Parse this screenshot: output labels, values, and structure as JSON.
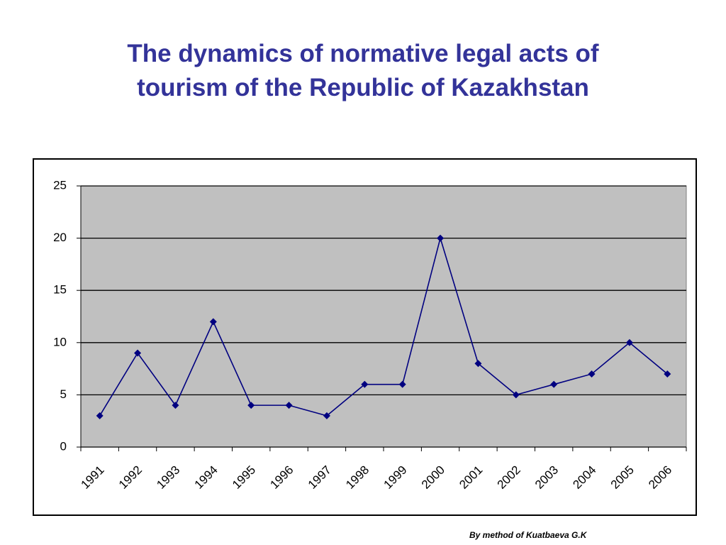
{
  "chart_data": {
    "type": "line",
    "title": "The dynamics of normative legal acts of tourism of the Republic of Kazakhstan",
    "categories": [
      "1991",
      "1992",
      "1993",
      "1994",
      "1995",
      "1996",
      "1997",
      "1998",
      "1999",
      "2000",
      "2001",
      "2002",
      "2003",
      "2004",
      "2005",
      "2006"
    ],
    "values": [
      3,
      9,
      4,
      12,
      4,
      4,
      3,
      6,
      6,
      20,
      8,
      5,
      6,
      7,
      10,
      7
    ],
    "color": "#000080",
    "ylim": [
      0,
      25
    ],
    "yticks": [
      0,
      5,
      10,
      15,
      20,
      25
    ],
    "grid": true,
    "note": "By method of Kuatbaeva G.K"
  }
}
